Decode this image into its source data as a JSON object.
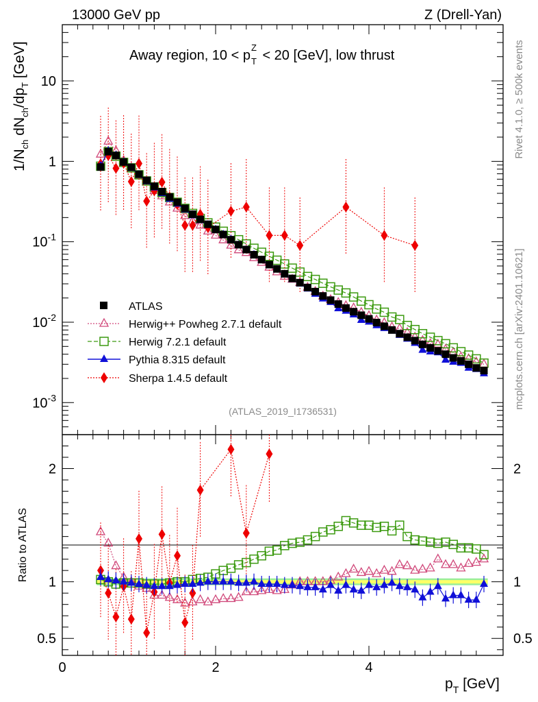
{
  "header": {
    "energy": "13000 GeV pp",
    "process": "Z (Drell-Yan)",
    "title": "Away region, 10 < p_T^Z < 20 [GeV], low thrust",
    "analysis_id": "(ATLAS_2019_I1736531)",
    "side_note_rivet": "Rivet 4.1.0, ≥ 500k events",
    "side_note_mcplots": "mcplots.cern.ch [arXiv:2401.10621]"
  },
  "colors": {
    "atlas": "#000000",
    "herwigpp": "#d0487a",
    "herwig7": "#3c9a10",
    "pythia": "#1010d8",
    "sherpa": "#ee0000",
    "band_inner": "#ffff66",
    "band_outer": "#99ee99"
  },
  "chart_data": [
    {
      "type": "scatter",
      "panel": "main",
      "ylabel": "1/N_ch dN_ch/dp_T [GeV]",
      "yscale": "log",
      "xlim": [
        0,
        5.75
      ],
      "ylim": [
        0.0004,
        50
      ],
      "y_ticks": [
        "10^-3",
        "10^-2",
        "10^-1",
        "1",
        "10"
      ],
      "legend_position": "middle-left",
      "legend": [
        "ATLAS",
        "Herwig++ Powheg 2.7.1 default",
        "Herwig 7.2.1 default",
        "Pythia 8.315 default",
        "Sherpa 1.4.5 default"
      ],
      "x": [
        0.5,
        0.6,
        0.7,
        0.8,
        0.9,
        1.0,
        1.1,
        1.2,
        1.3,
        1.4,
        1.5,
        1.6,
        1.7,
        1.8,
        1.9,
        2.0,
        2.1,
        2.2,
        2.3,
        2.4,
        2.5,
        2.6,
        2.7,
        2.8,
        2.9,
        3.0,
        3.1,
        3.2,
        3.3,
        3.4,
        3.5,
        3.6,
        3.7,
        3.8,
        3.9,
        4.0,
        4.1,
        4.2,
        4.3,
        4.4,
        4.5,
        4.6,
        4.7,
        4.8,
        4.9,
        5.0,
        5.1,
        5.2,
        5.3,
        5.4,
        5.5
      ],
      "series": [
        {
          "name": "ATLAS",
          "values": [
            0.85,
            1.32,
            1.18,
            0.98,
            0.84,
            0.69,
            0.58,
            0.49,
            0.42,
            0.36,
            0.31,
            0.26,
            0.22,
            0.19,
            0.165,
            0.142,
            0.123,
            0.106,
            0.092,
            0.08,
            0.069,
            0.06,
            0.052,
            0.046,
            0.04,
            0.035,
            0.031,
            0.027,
            0.024,
            0.0212,
            0.0188,
            0.0168,
            0.015,
            0.0135,
            0.0122,
            0.011,
            0.0099,
            0.0089,
            0.008,
            0.0072,
            0.0065,
            0.0059,
            0.0053,
            0.0048,
            0.0044,
            0.004,
            0.0036,
            0.0033,
            0.003,
            0.0027,
            0.0025
          ]
        },
        {
          "name": "Herwig++ Powheg 2.7.1 default",
          "values": [
            1.22,
            1.77,
            1.35,
            1.02,
            0.84,
            0.66,
            0.55,
            0.43,
            0.37,
            0.31,
            0.26,
            0.21,
            0.18,
            0.16,
            0.135,
            0.12,
            0.105,
            0.09,
            0.079,
            0.073,
            0.063,
            0.055,
            0.048,
            0.042,
            0.037,
            0.034,
            0.031,
            0.027,
            0.024,
            0.021,
            0.019,
            0.0175,
            0.016,
            0.015,
            0.0132,
            0.012,
            0.0106,
            0.0098,
            0.0087,
            0.0083,
            0.0074,
            0.0065,
            0.0059,
            0.0054,
            0.0053,
            0.0046,
            0.0042,
            0.0037,
            0.0035,
            0.0032,
            0.003
          ]
        },
        {
          "name": "Herwig 7.2.1 default",
          "values": [
            0.87,
            1.32,
            1.16,
            0.97,
            0.83,
            0.68,
            0.57,
            0.48,
            0.41,
            0.355,
            0.31,
            0.26,
            0.225,
            0.195,
            0.172,
            0.152,
            0.135,
            0.119,
            0.106,
            0.094,
            0.083,
            0.074,
            0.066,
            0.059,
            0.053,
            0.047,
            0.042,
            0.037,
            0.034,
            0.0305,
            0.0275,
            0.0251,
            0.0231,
            0.0206,
            0.0183,
            0.0165,
            0.0146,
            0.0133,
            0.0116,
            0.0108,
            0.0091,
            0.0081,
            0.0072,
            0.0065,
            0.0059,
            0.0054,
            0.0048,
            0.0043,
            0.0039,
            0.0035,
            0.0031
          ]
        },
        {
          "name": "Pythia 8.315 default",
          "values": [
            0.88,
            1.35,
            1.19,
            0.98,
            0.83,
            0.68,
            0.56,
            0.47,
            0.4,
            0.34,
            0.296,
            0.25,
            0.212,
            0.184,
            0.162,
            0.142,
            0.123,
            0.107,
            0.091,
            0.079,
            0.069,
            0.059,
            0.051,
            0.045,
            0.039,
            0.034,
            0.03,
            0.026,
            0.0224,
            0.0196,
            0.0177,
            0.0148,
            0.0138,
            0.0124,
            0.0106,
            0.0101,
            0.0091,
            0.0084,
            0.0078,
            0.0069,
            0.0062,
            0.0055,
            0.0045,
            0.0043,
            0.0042,
            0.0034,
            0.0032,
            0.0031,
            0.0027,
            0.0026,
            0.0023
          ]
        },
        {
          "name": "Sherpa 1.4.5 default",
          "x": [
            0.5,
            0.6,
            0.7,
            0.8,
            0.9,
            1.0,
            1.1,
            1.2,
            1.3,
            1.4,
            1.5,
            1.6,
            1.7,
            1.8,
            1.9,
            2.2,
            2.4,
            2.7,
            2.9,
            3.1,
            3.7,
            4.2,
            4.6
          ],
          "values": [
            0.93,
            1.18,
            0.82,
            0.95,
            0.56,
            0.94,
            0.32,
            0.43,
            0.55,
            0.36,
            0.29,
            0.16,
            0.16,
            0.22,
            0.15,
            0.24,
            0.27,
            0.12,
            0.12,
            0.09,
            0.27,
            0.12,
            0.09
          ]
        }
      ]
    },
    {
      "type": "scatter",
      "panel": "ratio",
      "xlabel": "p_T [GeV]",
      "ylabel": "Ratio to ATLAS",
      "xlim": [
        0,
        5.75
      ],
      "ylim": [
        0.35,
        2.3
      ],
      "x_ticks": [
        "0",
        "2",
        "4"
      ],
      "y_ticks": [
        "0.5",
        "1",
        "2"
      ],
      "reference_line": 1,
      "x": [
        0.5,
        0.6,
        0.7,
        0.8,
        0.9,
        1.0,
        1.1,
        1.2,
        1.3,
        1.4,
        1.5,
        1.6,
        1.7,
        1.8,
        1.9,
        2.0,
        2.1,
        2.2,
        2.3,
        2.4,
        2.5,
        2.6,
        2.7,
        2.8,
        2.9,
        3.0,
        3.1,
        3.2,
        3.3,
        3.4,
        3.5,
        3.6,
        3.7,
        3.8,
        3.9,
        4.0,
        4.1,
        4.2,
        4.3,
        4.4,
        4.5,
        4.6,
        4.7,
        4.8,
        4.9,
        5.0,
        5.1,
        5.2,
        5.3,
        5.4,
        5.5
      ],
      "series": [
        {
          "name": "Herwig++ Powheg 2.7.1 default",
          "values": [
            1.44,
            1.34,
            1.14,
            1.04,
            1.0,
            0.96,
            0.94,
            0.88,
            0.88,
            0.86,
            0.84,
            0.81,
            0.82,
            0.84,
            0.82,
            0.84,
            0.85,
            0.85,
            0.86,
            0.91,
            0.91,
            0.92,
            0.93,
            0.92,
            0.93,
            0.97,
            1.0,
            1.0,
            1.0,
            1.0,
            1.01,
            1.04,
            1.07,
            1.11,
            1.08,
            1.09,
            1.07,
            1.1,
            1.09,
            1.15,
            1.14,
            1.1,
            1.11,
            1.12,
            1.2,
            1.15,
            1.15,
            1.12,
            1.16,
            1.17,
            1.2
          ]
        },
        {
          "name": "Herwig 7.2.1 default",
          "values": [
            1.02,
            1.0,
            0.98,
            0.99,
            0.99,
            0.99,
            0.98,
            0.98,
            0.98,
            0.99,
            1.0,
            1.0,
            1.02,
            1.03,
            1.04,
            1.07,
            1.1,
            1.12,
            1.15,
            1.17,
            1.2,
            1.23,
            1.27,
            1.28,
            1.32,
            1.34,
            1.35,
            1.37,
            1.4,
            1.44,
            1.46,
            1.49,
            1.54,
            1.52,
            1.5,
            1.5,
            1.48,
            1.49,
            1.45,
            1.5,
            1.4,
            1.37,
            1.36,
            1.35,
            1.34,
            1.35,
            1.33,
            1.3,
            1.3,
            1.29,
            1.24
          ]
        },
        {
          "name": "Pythia 8.315 default",
          "values": [
            1.04,
            1.02,
            1.01,
            1.0,
            0.99,
            0.98,
            0.97,
            0.96,
            0.96,
            0.96,
            0.97,
            0.98,
            0.98,
            0.99,
            1.0,
            1.0,
            1.0,
            1.0,
            0.99,
            0.99,
            1.0,
            0.98,
            0.98,
            0.98,
            0.97,
            0.97,
            0.96,
            0.95,
            0.95,
            0.93,
            0.97,
            0.92,
            0.97,
            0.93,
            0.92,
            0.97,
            0.95,
            0.97,
            0.99,
            0.96,
            0.95,
            0.93,
            0.86,
            0.91,
            0.96,
            0.85,
            0.88,
            0.88,
            0.84,
            0.84,
            0.98
          ]
        },
        {
          "name": "Sherpa 1.4.5 default",
          "x": [
            0.5,
            0.6,
            0.7,
            0.8,
            0.9,
            1.0,
            1.1,
            1.2,
            1.3,
            1.4,
            1.5,
            1.6,
            1.7,
            1.8,
            2.2,
            2.4,
            2.7
          ],
          "values": [
            1.1,
            0.9,
            0.69,
            0.96,
            0.67,
            1.38,
            0.55,
            0.91,
            1.42,
            0.99,
            1.23,
            0.64,
            0.9,
            1.81,
            2.17,
            1.43,
            2.13
          ]
        }
      ]
    }
  ]
}
